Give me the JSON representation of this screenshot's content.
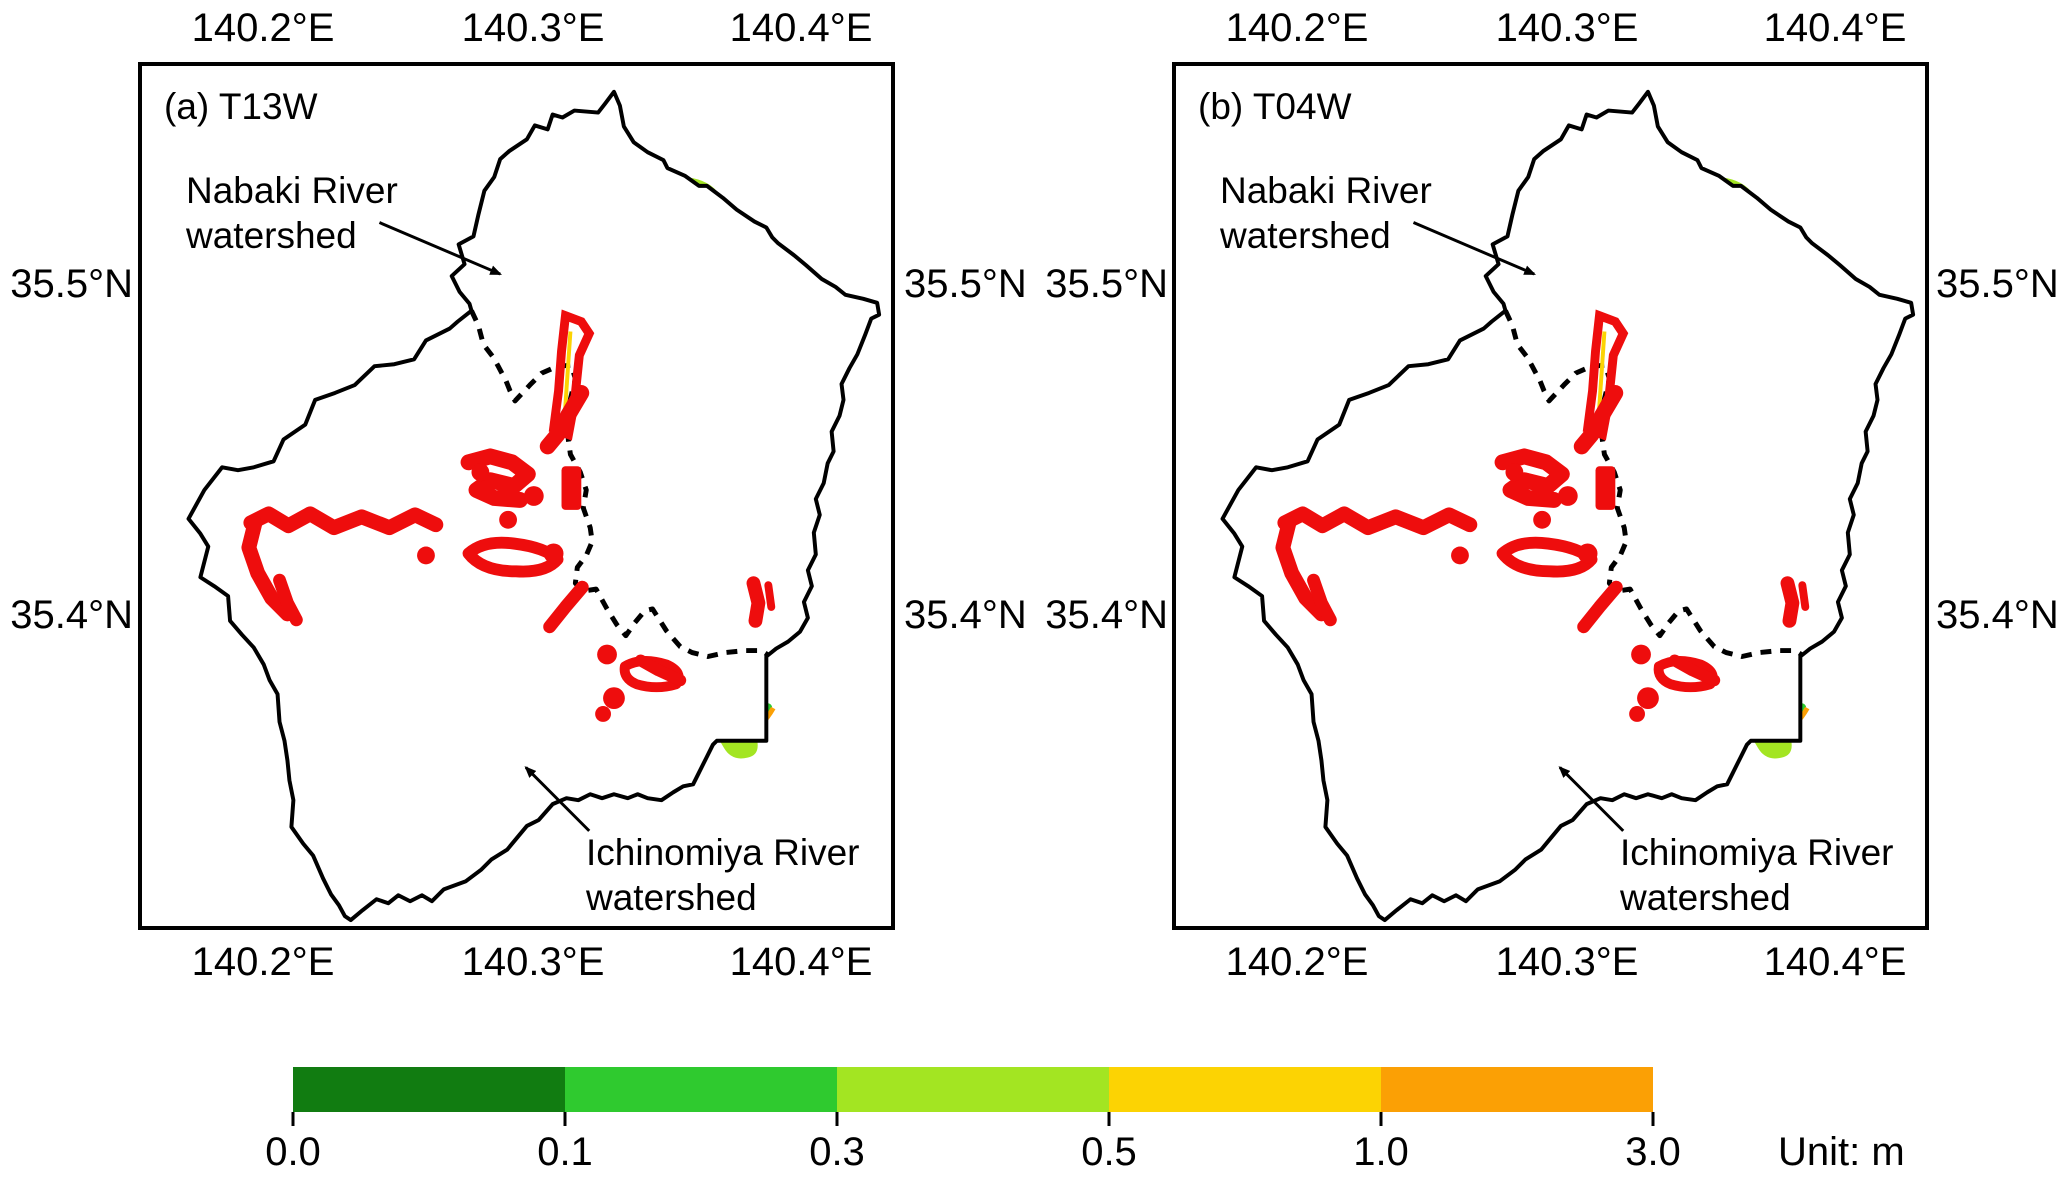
{
  "figure": {
    "lon_ticks": [
      "140.2°E",
      "140.3°E",
      "140.4°E"
    ],
    "lat_ticks": [
      "35.5°N",
      "35.4°N"
    ],
    "panels": [
      {
        "title": "(a) T13W",
        "north_annotation_line1": "Nabaki River",
        "north_annotation_line2": "watershed",
        "south_annotation_line1": "Ichinomiya River",
        "south_annotation_line2": "watershed"
      },
      {
        "title": "(b) T04W",
        "north_annotation_line1": "Nabaki River",
        "north_annotation_line2": "watershed",
        "south_annotation_line1": "Ichinomiya River",
        "south_annotation_line2": "watershed"
      }
    ],
    "colorbar": {
      "tick_labels": [
        "0.0",
        "0.1",
        "0.3",
        "0.5",
        "1.0",
        "3.0"
      ],
      "unit_label": "Unit: m",
      "segment_colors": [
        "#117c11",
        "#2fca2f",
        "#a3e522",
        "#fcd303",
        "#fba005"
      ],
      "segment_ranges": [
        "0.0-0.1",
        "0.1-0.3",
        "0.3-0.5",
        "0.5-1.0",
        "1.0-3.0"
      ]
    },
    "map_colors": {
      "depth_0_01": "#117c11",
      "depth_01_03": "#2fca2f",
      "depth_03_05": "#a3e522",
      "depth_05_10": "#fcd303",
      "depth_10_30": "#fba005",
      "highlight_red": "#ee0d0d",
      "boundary": "#000000"
    }
  }
}
